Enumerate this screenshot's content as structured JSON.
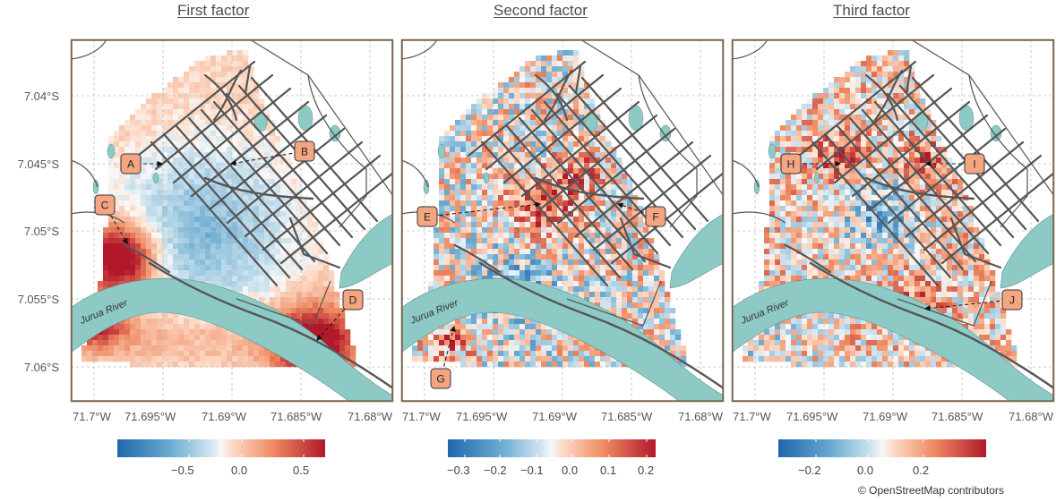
{
  "panels": [
    {
      "title": "First factor",
      "labels": [
        "A",
        "B",
        "C",
        "D"
      ],
      "colorbar_ticks": [
        "−0.5",
        "0.0",
        "0.5"
      ],
      "scale": [
        -0.9,
        0.65
      ],
      "hotspots": [
        {
          "label": "A",
          "level": 0.2
        },
        {
          "label": "B",
          "level": -0.2
        },
        {
          "label": "C",
          "level": 0.55
        },
        {
          "label": "D",
          "level": 0.65
        }
      ]
    },
    {
      "title": "Second factor",
      "labels": [
        "E",
        "F",
        "G"
      ],
      "colorbar_ticks": [
        "−0.3",
        "−0.2",
        "−0.1",
        "0.0",
        "0.1",
        "0.2"
      ],
      "scale": [
        -0.33,
        0.22
      ]
    },
    {
      "title": "Third factor",
      "labels": [
        "H",
        "I",
        "J"
      ],
      "colorbar_ticks": [
        "−0.2",
        "0.0",
        "0.2"
      ],
      "scale": [
        -0.28,
        0.42
      ]
    }
  ],
  "axes": {
    "y_ticks": [
      "7.04°S",
      "7.045°S",
      "7.05°S",
      "7.055°S",
      "7.06°S"
    ],
    "x_ticks": [
      "71.7°W",
      "71.695°W",
      "71.69°W",
      "71.685°W",
      "71.68°W"
    ]
  },
  "river_label": "Jurua River",
  "credit": "© OpenStreetMap contributors",
  "colors": {
    "river": "#8ecac5",
    "frame": "#7a6450",
    "road": "#555555",
    "neg": "#2166ac",
    "pos": "#b2182b"
  }
}
